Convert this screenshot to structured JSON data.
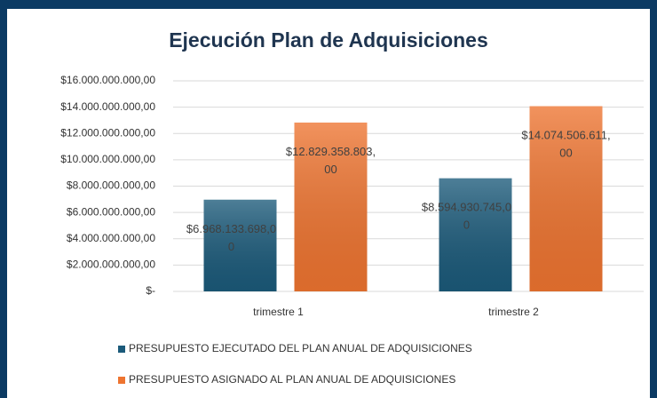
{
  "chart_data": {
    "type": "bar",
    "title": "Ejecución Plan de Adquisiciones",
    "categories": [
      "trimestre 1",
      "trimestre 2"
    ],
    "series": [
      {
        "name": "PRESUPUESTO EJECUTADO DEL PLAN ANUAL DE ADQUISICIONES",
        "color": "#1b5a7a",
        "values": [
          6968133698,
          8594930745
        ],
        "value_labels": [
          "$6.968.133.698,00",
          "$8.594.930.745,00"
        ]
      },
      {
        "name": "PRESUPUESTO ASIGNADO AL PLAN ANUAL DE ADQUISICIONES",
        "color": "#ee7430",
        "values": [
          12829358803,
          14074506611
        ],
        "value_labels": [
          "$12.829.358.803,00",
          "$14.074.506.611,00"
        ]
      }
    ],
    "ylim": [
      0,
      16000000000
    ],
    "yticks": [
      {
        "value": 0,
        "label": "$-"
      },
      {
        "value": 2000000000,
        "label": "$2.000.000.000,00"
      },
      {
        "value": 4000000000,
        "label": "$4.000.000.000,00"
      },
      {
        "value": 6000000000,
        "label": "$6.000.000.000,00"
      },
      {
        "value": 8000000000,
        "label": "$8.000.000.000,00"
      },
      {
        "value": 10000000000,
        "label": "$10.000.000.000,00"
      },
      {
        "value": 12000000000,
        "label": "$12.000.000.000,00"
      },
      {
        "value": 14000000000,
        "label": "$14.000.000.000,00"
      },
      {
        "value": 16000000000,
        "label": "$16.000.000.000,00"
      }
    ],
    "grid": true,
    "legend": "bottom"
  }
}
